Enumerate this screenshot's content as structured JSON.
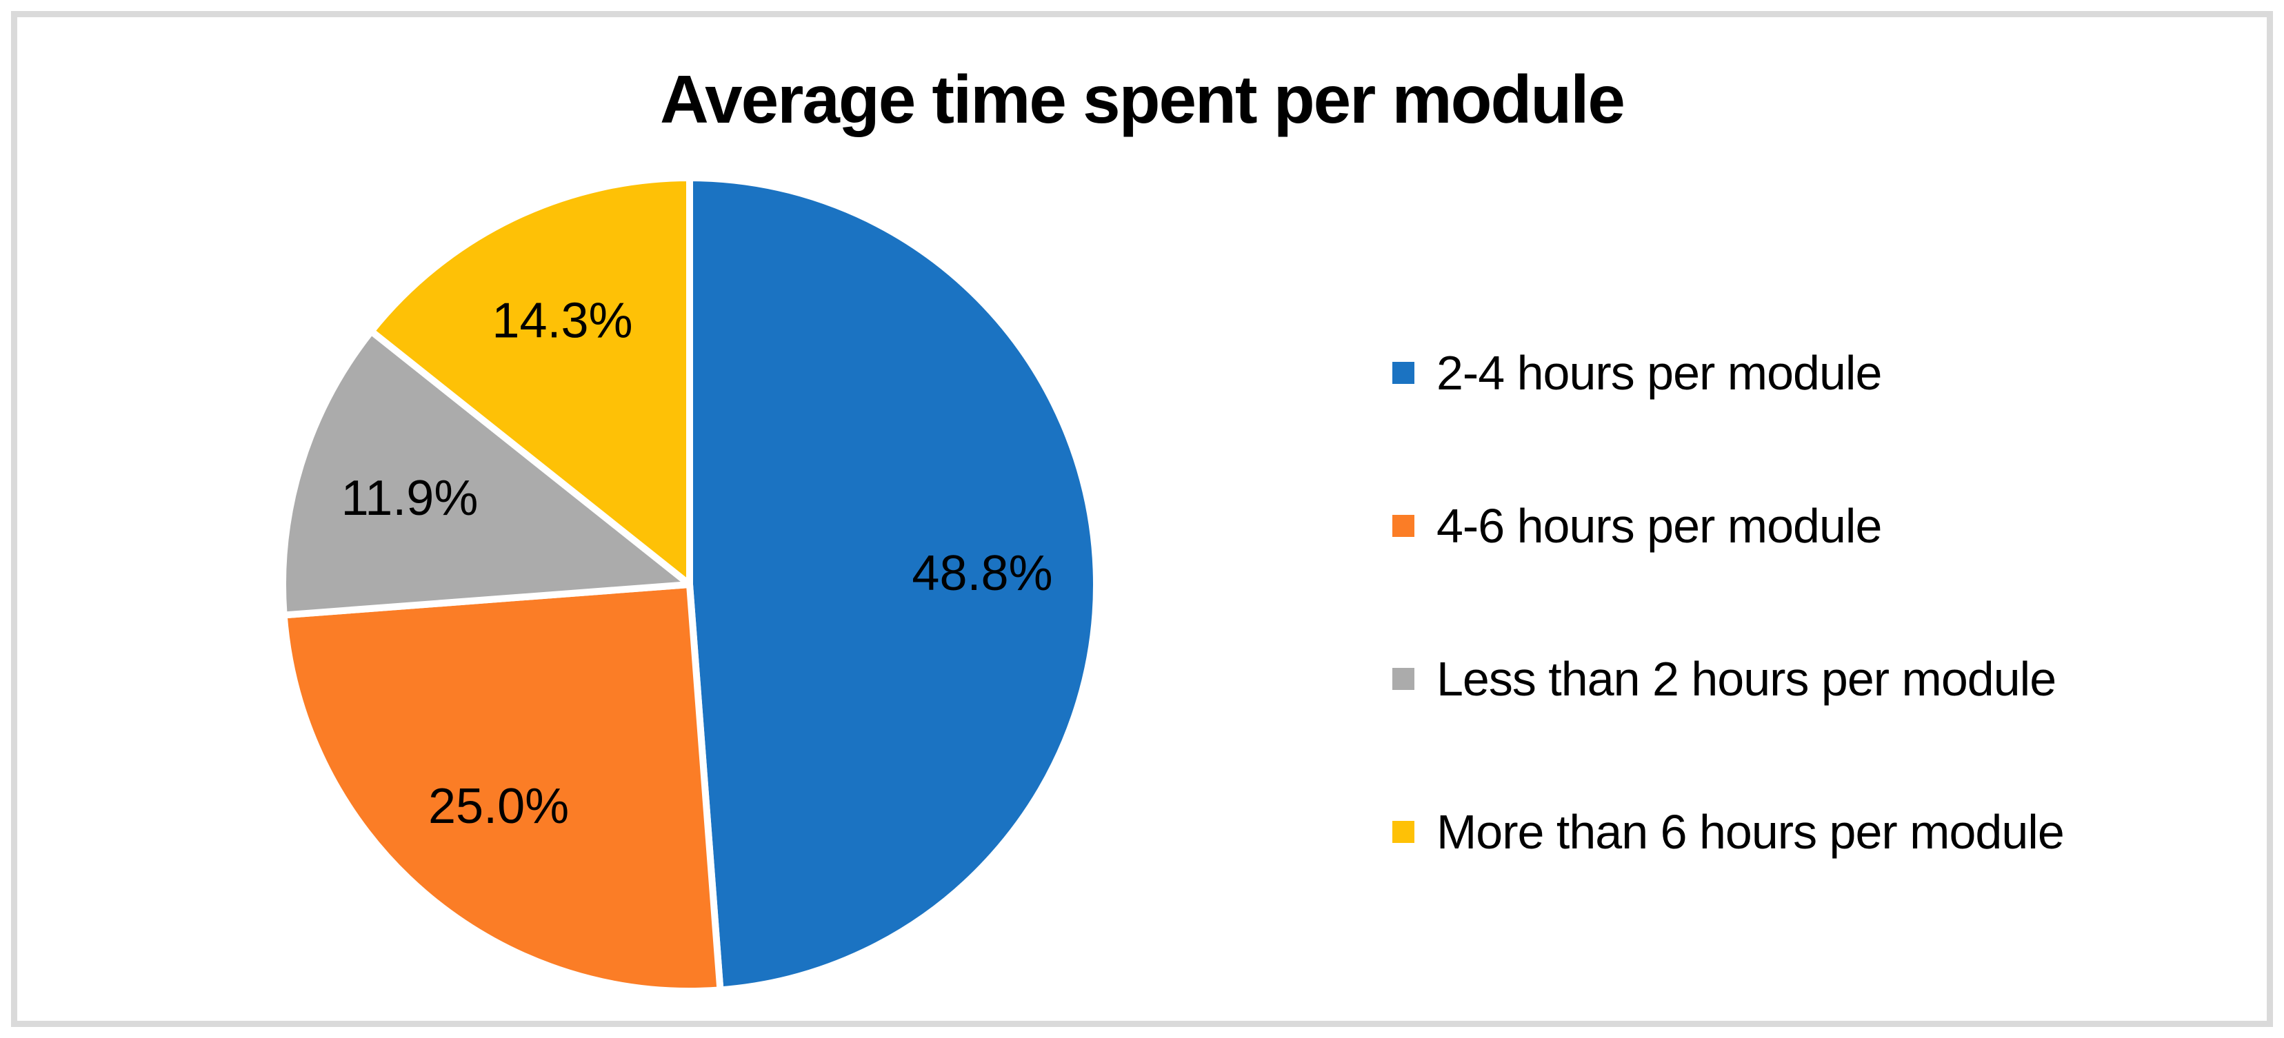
{
  "frame": {
    "border_color": "#dadada",
    "background_color": "#ffffff"
  },
  "chart_data": {
    "type": "pie",
    "title": "Average time spent per module",
    "slices": [
      {
        "label": "2-4 hours per module",
        "value": 48.8,
        "display": "48.8%",
        "color": "#1b73c2"
      },
      {
        "label": "4-6 hours per module",
        "value": 25.0,
        "display": "25.0%",
        "color": "#fb7d26"
      },
      {
        "label": "Less than 2 hours per module",
        "value": 11.9,
        "display": "11.9%",
        "color": "#ababab"
      },
      {
        "label": "More than 6 hours per module",
        "value": 14.3,
        "display": "14.3%",
        "color": "#fec106"
      }
    ],
    "start_angle_deg": 0,
    "direction": "clockwise",
    "slice_border_color": "#ffffff",
    "data_labels": "percent",
    "label_text_color": "#000000",
    "legend_position": "right",
    "grid": false
  }
}
